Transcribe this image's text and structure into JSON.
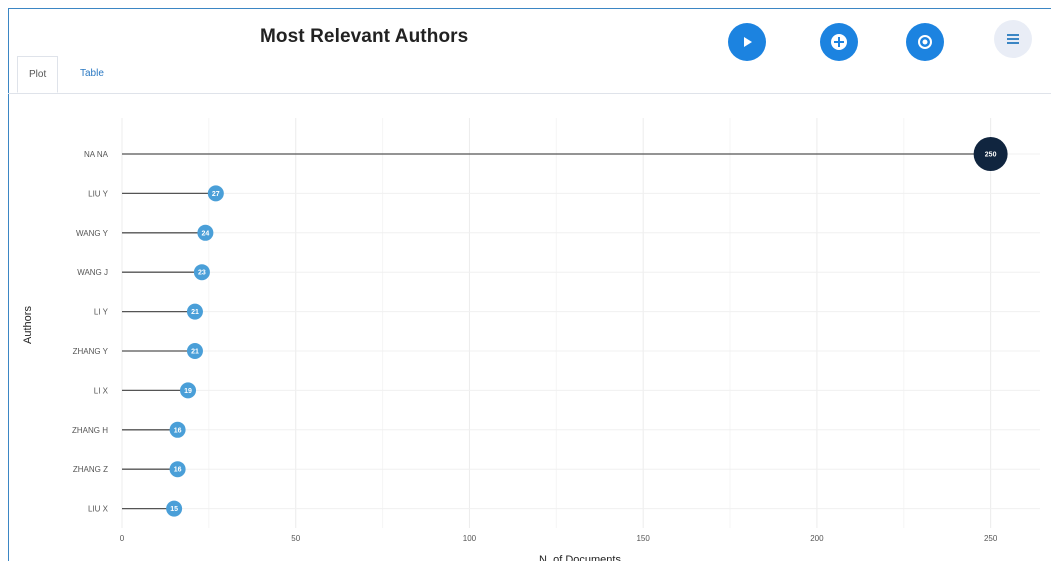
{
  "header": {
    "title": "Most Relevant Authors"
  },
  "toolbar": {
    "buttons": [
      {
        "icon": "play-icon"
      },
      {
        "icon": "plus-icon"
      },
      {
        "icon": "record-icon"
      },
      {
        "icon": "menu-icon"
      }
    ],
    "accent_color": "#1c83e0"
  },
  "tabs": [
    {
      "label": "Plot",
      "active": true
    },
    {
      "label": "Table",
      "active": false
    }
  ],
  "chart_data": {
    "type": "lollipop",
    "title": "Most Relevant Authors",
    "xlabel": "N. of Documents",
    "ylabel": "Authors",
    "xlim": [
      0,
      255
    ],
    "x_ticks": [
      0,
      50,
      100,
      150,
      200,
      250
    ],
    "grid": true,
    "categories": [
      "NA NA",
      "LIU Y",
      "WANG Y",
      "WANG J",
      "LI Y",
      "ZHANG Y",
      "LI X",
      "ZHANG H",
      "ZHANG Z",
      "LIU X"
    ],
    "values": [
      250,
      27,
      24,
      23,
      21,
      21,
      19,
      16,
      16,
      15
    ],
    "point_colors": {
      "max": "#10253f",
      "other": "#4a9fd8"
    },
    "line_color": "#555555"
  }
}
